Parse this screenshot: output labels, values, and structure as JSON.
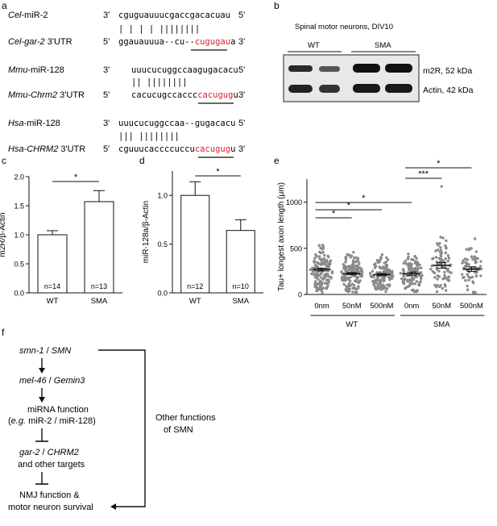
{
  "panels": {
    "a": {
      "label": "a",
      "groups": [
        {
          "mirna_species": "Cel",
          "mirna_name": "-miR-2",
          "target_species": "Cel",
          "target_name": "-gar-2",
          "target_suffix": " 3'UTR",
          "mirna_seq": "cguguauuucgaccgacacuau",
          "pairs": "|   | |     |  ||||||||",
          "target_seq_black": "ggauauuua--cu--",
          "target_seq_red": "cugugau",
          "target_seq_tail": "a",
          "p3": "3'",
          "p5": "5'"
        },
        {
          "mirna_species": "Mmu",
          "mirna_name": "-miR-128",
          "target_species": "Mmu",
          "target_name": "-Chrm2",
          "target_suffix": " 3'UTR",
          "mirna_seq": "uuucucuggccaagugacacu",
          "pairs": "      ||   ||||||||",
          "target_seq_black": "cacucugccaccc",
          "target_seq_red": "cacugug",
          "target_seq_tail": "u",
          "p3": "3'",
          "p5": "5'"
        },
        {
          "mirna_species": "Hsa",
          "mirna_name": "-miR-128",
          "target_species": "Hsa",
          "target_name": "-CHRM2",
          "target_suffix": " 3'UTR",
          "mirna_seq": "uuucucuggccaa--gugacacu",
          "pairs": "   |||      ||||||||",
          "target_seq_black": "cguuucaccccuccu",
          "target_seq_red": "cacugug",
          "target_seq_tail": "u",
          "p3": "3'",
          "p5": "5'"
        }
      ]
    },
    "b": {
      "label": "b",
      "title": "Spinal motor neurons, DIV10",
      "groups": [
        "WT",
        "SMA"
      ],
      "band_labels": [
        "m2R, 52 kDa",
        "Actin, 42 kDa"
      ]
    },
    "c": {
      "label": "c",
      "chart_data": {
        "type": "bar",
        "categories": [
          "WT",
          "SMA"
        ],
        "values": [
          1.0,
          1.57
        ],
        "errors": [
          0.07,
          0.19
        ],
        "n_labels": [
          "n=14",
          "n=13"
        ],
        "ylabel": "m2R/β-Actin",
        "ylim": [
          0,
          2.0
        ],
        "yticks": [
          "0.0",
          "0.5",
          "1.0",
          "1.5",
          "2.0"
        ],
        "significance": "*"
      }
    },
    "d": {
      "label": "d",
      "chart_data": {
        "type": "bar",
        "categories": [
          "WT",
          "SMA"
        ],
        "values": [
          1.0,
          0.64
        ],
        "errors": [
          0.14,
          0.11
        ],
        "n_labels": [
          "n=12",
          "n=10"
        ],
        "ylabel": "miR-128a/β-Actin",
        "ylim": [
          0,
          1.25
        ],
        "yticks": [
          "0.0",
          "0.5",
          "1.0"
        ],
        "significance": "*"
      }
    },
    "e": {
      "label": "e",
      "chart_data": {
        "type": "scatter",
        "categories": [
          "0nm",
          "50nM",
          "500nM",
          "0nm",
          "50nM",
          "500nM"
        ],
        "groups": [
          "WT",
          "SMA"
        ],
        "means": [
          270,
          225,
          215,
          225,
          315,
          275
        ],
        "sems": [
          15,
          12,
          12,
          18,
          30,
          25
        ],
        "ylabel": "Tau+ longest axon length (μm)",
        "ylim": [
          0,
          1250
        ],
        "yticks": [
          "0",
          "500",
          "1000"
        ],
        "comparisons": [
          {
            "from": 1,
            "to": 2,
            "label": "*"
          },
          {
            "from": 1,
            "to": 3,
            "label": "*"
          },
          {
            "from": 1,
            "to": 4,
            "label": "*"
          },
          {
            "from": 4,
            "to": 5,
            "label": "***"
          },
          {
            "from": 4,
            "to": 6,
            "label": "*"
          }
        ]
      }
    },
    "f": {
      "label": "f",
      "node1_a": "smn-1",
      "node1_b": " / ",
      "node1_c": "SMN",
      "node2_a": "mel-46",
      "node2_b": " / ",
      "node2_c": "Gemin3",
      "node3_line1": "miRNA function",
      "node3_line2_a": "(",
      "node3_line2_b": "e.g.",
      "node3_line2_c": " miR-2 / miR-128)",
      "node4_a": "gar-2",
      "node4_b": " / ",
      "node4_c": "CHRM2",
      "node4_line2": "and other targets",
      "node5_line1": "NMJ function &",
      "node5_line2": "motor neuron survival",
      "side_line1": "Other functions",
      "side_line2": "of SMN"
    }
  },
  "colors": {
    "red": "#e0202a",
    "bar": "#ffffff",
    "dot": "#888888"
  }
}
